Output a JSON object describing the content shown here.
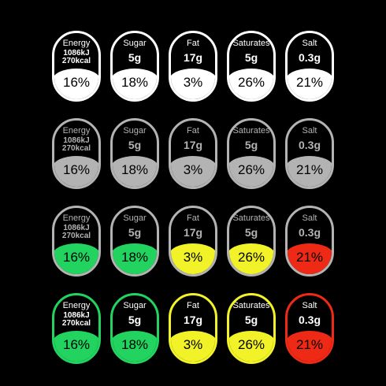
{
  "nutrients": [
    {
      "name": "Energy",
      "amount": "",
      "kj": "1086kJ",
      "kcal": "270kcal",
      "percent": "16%"
    },
    {
      "name": "Sugar",
      "amount": "5g",
      "kj": "",
      "kcal": "",
      "percent": "18%"
    },
    {
      "name": "Fat",
      "amount": "17g",
      "kj": "",
      "kcal": "",
      "percent": "3%"
    },
    {
      "name": "Saturates",
      "amount": "5g",
      "kj": "",
      "kcal": "",
      "percent": "26%"
    },
    {
      "name": "Salt",
      "amount": "0.3g",
      "kj": "",
      "kcal": "",
      "percent": "21%"
    }
  ],
  "variants": [
    {
      "top_text": "#ffffff",
      "borders": [
        "#ffffff",
        "#ffffff",
        "#ffffff",
        "#ffffff",
        "#ffffff"
      ],
      "fills": [
        "#ffffff",
        "#ffffff",
        "#ffffff",
        "#ffffff",
        "#ffffff"
      ]
    },
    {
      "top_text": "#b3b3b3",
      "borders": [
        "#b3b3b3",
        "#b3b3b3",
        "#b3b3b3",
        "#b3b3b3",
        "#b3b3b3"
      ],
      "fills": [
        "#b3b3b3",
        "#b3b3b3",
        "#b3b3b3",
        "#b3b3b3",
        "#b3b3b3"
      ]
    },
    {
      "top_text": "#b3b3b3",
      "borders": [
        "#b3b3b3",
        "#b3b3b3",
        "#b3b3b3",
        "#b3b3b3",
        "#b3b3b3"
      ],
      "fills": [
        "#22d45f",
        "#22d45f",
        "#f2f229",
        "#f2f229",
        "#ee2a16"
      ]
    },
    {
      "top_text": "#ffffff",
      "borders": [
        "#22d45f",
        "#22d45f",
        "#f2f229",
        "#f2f229",
        "#ee2a16"
      ],
      "fills": [
        "#22d45f",
        "#22d45f",
        "#f2f229",
        "#f2f229",
        "#ee2a16"
      ]
    }
  ]
}
